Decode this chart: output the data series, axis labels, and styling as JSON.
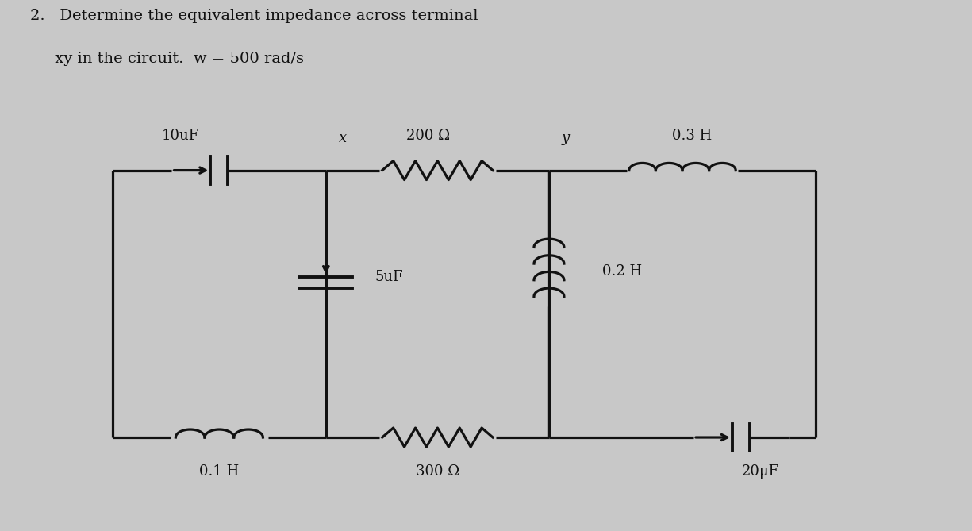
{
  "title_line1": "2.   Determine the equivalent impedance across terminal",
  "title_line2": "     xy in the circuit.  w = 500 rad/s",
  "bg_color": "#c8c8c8",
  "circuit_color": "#111111",
  "components": {
    "cap10uF_label": "10uF",
    "cap5uF_label": "5uF",
    "res200_label": "200 Ω",
    "res300_label": "300 Ω",
    "ind01H_label": "0.1 H",
    "ind02H_label": "0.2 H",
    "ind03H_label": "0.3 H",
    "cap20uF_label": "20μF",
    "node_x": "x",
    "node_y": "y"
  },
  "xl": 0.115,
  "xm1": 0.335,
  "xm2": 0.565,
  "xr": 0.84,
  "yt": 0.68,
  "yb": 0.175,
  "lw": 2.3,
  "fontsize": 13
}
